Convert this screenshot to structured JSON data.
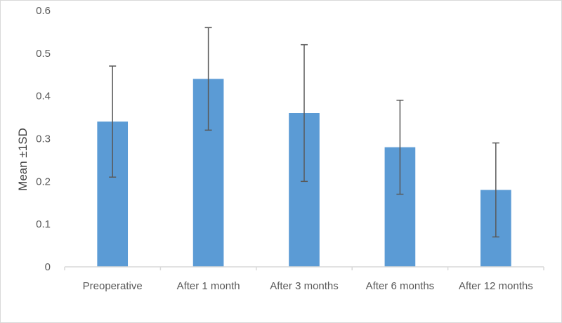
{
  "chart_data": {
    "type": "bar",
    "title": "",
    "xlabel": "",
    "ylabel": "Mean ±1SD",
    "categories": [
      "Preoperative",
      "After 1 month",
      "After 3 months",
      "After 6 months",
      "After 12 months"
    ],
    "values": [
      0.34,
      0.44,
      0.36,
      0.28,
      0.18
    ],
    "error_bars": [
      0.13,
      0.12,
      0.16,
      0.11,
      0.11
    ],
    "ylim": [
      0,
      0.6
    ],
    "yticks": [
      "0",
      "0.1",
      "0.2",
      "0.3",
      "0.4",
      "0.5",
      "0.6"
    ],
    "grid": false,
    "legend": "none",
    "bar_color": "#5b9bd5",
    "error_bar_color": "#595959",
    "axis_color": "#d9d9d9"
  }
}
